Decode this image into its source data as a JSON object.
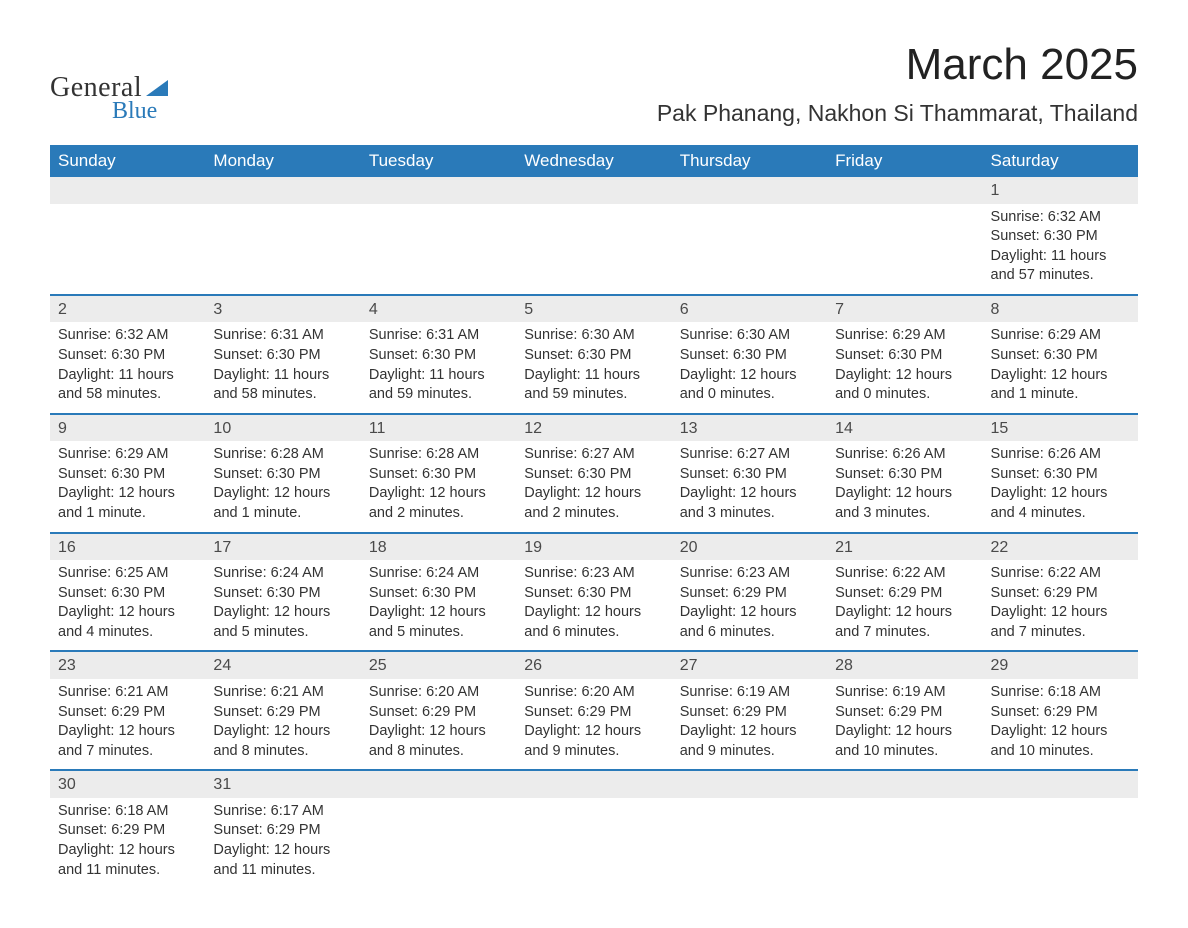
{
  "logo": {
    "word1": "General",
    "word2": "Blue",
    "icon_color": "#2a7ab9"
  },
  "title": "March 2025",
  "location": "Pak Phanang, Nakhon Si Thammarat, Thailand",
  "colors": {
    "header_bg": "#2a7ab9",
    "header_text": "#ffffff",
    "daynum_bg": "#ececec",
    "row_border": "#2a7ab9",
    "text": "#333333"
  },
  "weekdays": [
    "Sunday",
    "Monday",
    "Tuesday",
    "Wednesday",
    "Thursday",
    "Friday",
    "Saturday"
  ],
  "weeks": [
    [
      null,
      null,
      null,
      null,
      null,
      null,
      {
        "n": "1",
        "sunrise": "Sunrise: 6:32 AM",
        "sunset": "Sunset: 6:30 PM",
        "daylight1": "Daylight: 11 hours",
        "daylight2": "and 57 minutes."
      }
    ],
    [
      {
        "n": "2",
        "sunrise": "Sunrise: 6:32 AM",
        "sunset": "Sunset: 6:30 PM",
        "daylight1": "Daylight: 11 hours",
        "daylight2": "and 58 minutes."
      },
      {
        "n": "3",
        "sunrise": "Sunrise: 6:31 AM",
        "sunset": "Sunset: 6:30 PM",
        "daylight1": "Daylight: 11 hours",
        "daylight2": "and 58 minutes."
      },
      {
        "n": "4",
        "sunrise": "Sunrise: 6:31 AM",
        "sunset": "Sunset: 6:30 PM",
        "daylight1": "Daylight: 11 hours",
        "daylight2": "and 59 minutes."
      },
      {
        "n": "5",
        "sunrise": "Sunrise: 6:30 AM",
        "sunset": "Sunset: 6:30 PM",
        "daylight1": "Daylight: 11 hours",
        "daylight2": "and 59 minutes."
      },
      {
        "n": "6",
        "sunrise": "Sunrise: 6:30 AM",
        "sunset": "Sunset: 6:30 PM",
        "daylight1": "Daylight: 12 hours",
        "daylight2": "and 0 minutes."
      },
      {
        "n": "7",
        "sunrise": "Sunrise: 6:29 AM",
        "sunset": "Sunset: 6:30 PM",
        "daylight1": "Daylight: 12 hours",
        "daylight2": "and 0 minutes."
      },
      {
        "n": "8",
        "sunrise": "Sunrise: 6:29 AM",
        "sunset": "Sunset: 6:30 PM",
        "daylight1": "Daylight: 12 hours",
        "daylight2": "and 1 minute."
      }
    ],
    [
      {
        "n": "9",
        "sunrise": "Sunrise: 6:29 AM",
        "sunset": "Sunset: 6:30 PM",
        "daylight1": "Daylight: 12 hours",
        "daylight2": "and 1 minute."
      },
      {
        "n": "10",
        "sunrise": "Sunrise: 6:28 AM",
        "sunset": "Sunset: 6:30 PM",
        "daylight1": "Daylight: 12 hours",
        "daylight2": "and 1 minute."
      },
      {
        "n": "11",
        "sunrise": "Sunrise: 6:28 AM",
        "sunset": "Sunset: 6:30 PM",
        "daylight1": "Daylight: 12 hours",
        "daylight2": "and 2 minutes."
      },
      {
        "n": "12",
        "sunrise": "Sunrise: 6:27 AM",
        "sunset": "Sunset: 6:30 PM",
        "daylight1": "Daylight: 12 hours",
        "daylight2": "and 2 minutes."
      },
      {
        "n": "13",
        "sunrise": "Sunrise: 6:27 AM",
        "sunset": "Sunset: 6:30 PM",
        "daylight1": "Daylight: 12 hours",
        "daylight2": "and 3 minutes."
      },
      {
        "n": "14",
        "sunrise": "Sunrise: 6:26 AM",
        "sunset": "Sunset: 6:30 PM",
        "daylight1": "Daylight: 12 hours",
        "daylight2": "and 3 minutes."
      },
      {
        "n": "15",
        "sunrise": "Sunrise: 6:26 AM",
        "sunset": "Sunset: 6:30 PM",
        "daylight1": "Daylight: 12 hours",
        "daylight2": "and 4 minutes."
      }
    ],
    [
      {
        "n": "16",
        "sunrise": "Sunrise: 6:25 AM",
        "sunset": "Sunset: 6:30 PM",
        "daylight1": "Daylight: 12 hours",
        "daylight2": "and 4 minutes."
      },
      {
        "n": "17",
        "sunrise": "Sunrise: 6:24 AM",
        "sunset": "Sunset: 6:30 PM",
        "daylight1": "Daylight: 12 hours",
        "daylight2": "and 5 minutes."
      },
      {
        "n": "18",
        "sunrise": "Sunrise: 6:24 AM",
        "sunset": "Sunset: 6:30 PM",
        "daylight1": "Daylight: 12 hours",
        "daylight2": "and 5 minutes."
      },
      {
        "n": "19",
        "sunrise": "Sunrise: 6:23 AM",
        "sunset": "Sunset: 6:30 PM",
        "daylight1": "Daylight: 12 hours",
        "daylight2": "and 6 minutes."
      },
      {
        "n": "20",
        "sunrise": "Sunrise: 6:23 AM",
        "sunset": "Sunset: 6:29 PM",
        "daylight1": "Daylight: 12 hours",
        "daylight2": "and 6 minutes."
      },
      {
        "n": "21",
        "sunrise": "Sunrise: 6:22 AM",
        "sunset": "Sunset: 6:29 PM",
        "daylight1": "Daylight: 12 hours",
        "daylight2": "and 7 minutes."
      },
      {
        "n": "22",
        "sunrise": "Sunrise: 6:22 AM",
        "sunset": "Sunset: 6:29 PM",
        "daylight1": "Daylight: 12 hours",
        "daylight2": "and 7 minutes."
      }
    ],
    [
      {
        "n": "23",
        "sunrise": "Sunrise: 6:21 AM",
        "sunset": "Sunset: 6:29 PM",
        "daylight1": "Daylight: 12 hours",
        "daylight2": "and 7 minutes."
      },
      {
        "n": "24",
        "sunrise": "Sunrise: 6:21 AM",
        "sunset": "Sunset: 6:29 PM",
        "daylight1": "Daylight: 12 hours",
        "daylight2": "and 8 minutes."
      },
      {
        "n": "25",
        "sunrise": "Sunrise: 6:20 AM",
        "sunset": "Sunset: 6:29 PM",
        "daylight1": "Daylight: 12 hours",
        "daylight2": "and 8 minutes."
      },
      {
        "n": "26",
        "sunrise": "Sunrise: 6:20 AM",
        "sunset": "Sunset: 6:29 PM",
        "daylight1": "Daylight: 12 hours",
        "daylight2": "and 9 minutes."
      },
      {
        "n": "27",
        "sunrise": "Sunrise: 6:19 AM",
        "sunset": "Sunset: 6:29 PM",
        "daylight1": "Daylight: 12 hours",
        "daylight2": "and 9 minutes."
      },
      {
        "n": "28",
        "sunrise": "Sunrise: 6:19 AM",
        "sunset": "Sunset: 6:29 PM",
        "daylight1": "Daylight: 12 hours",
        "daylight2": "and 10 minutes."
      },
      {
        "n": "29",
        "sunrise": "Sunrise: 6:18 AM",
        "sunset": "Sunset: 6:29 PM",
        "daylight1": "Daylight: 12 hours",
        "daylight2": "and 10 minutes."
      }
    ],
    [
      {
        "n": "30",
        "sunrise": "Sunrise: 6:18 AM",
        "sunset": "Sunset: 6:29 PM",
        "daylight1": "Daylight: 12 hours",
        "daylight2": "and 11 minutes."
      },
      {
        "n": "31",
        "sunrise": "Sunrise: 6:17 AM",
        "sunset": "Sunset: 6:29 PM",
        "daylight1": "Daylight: 12 hours",
        "daylight2": "and 11 minutes."
      },
      null,
      null,
      null,
      null,
      null
    ]
  ]
}
